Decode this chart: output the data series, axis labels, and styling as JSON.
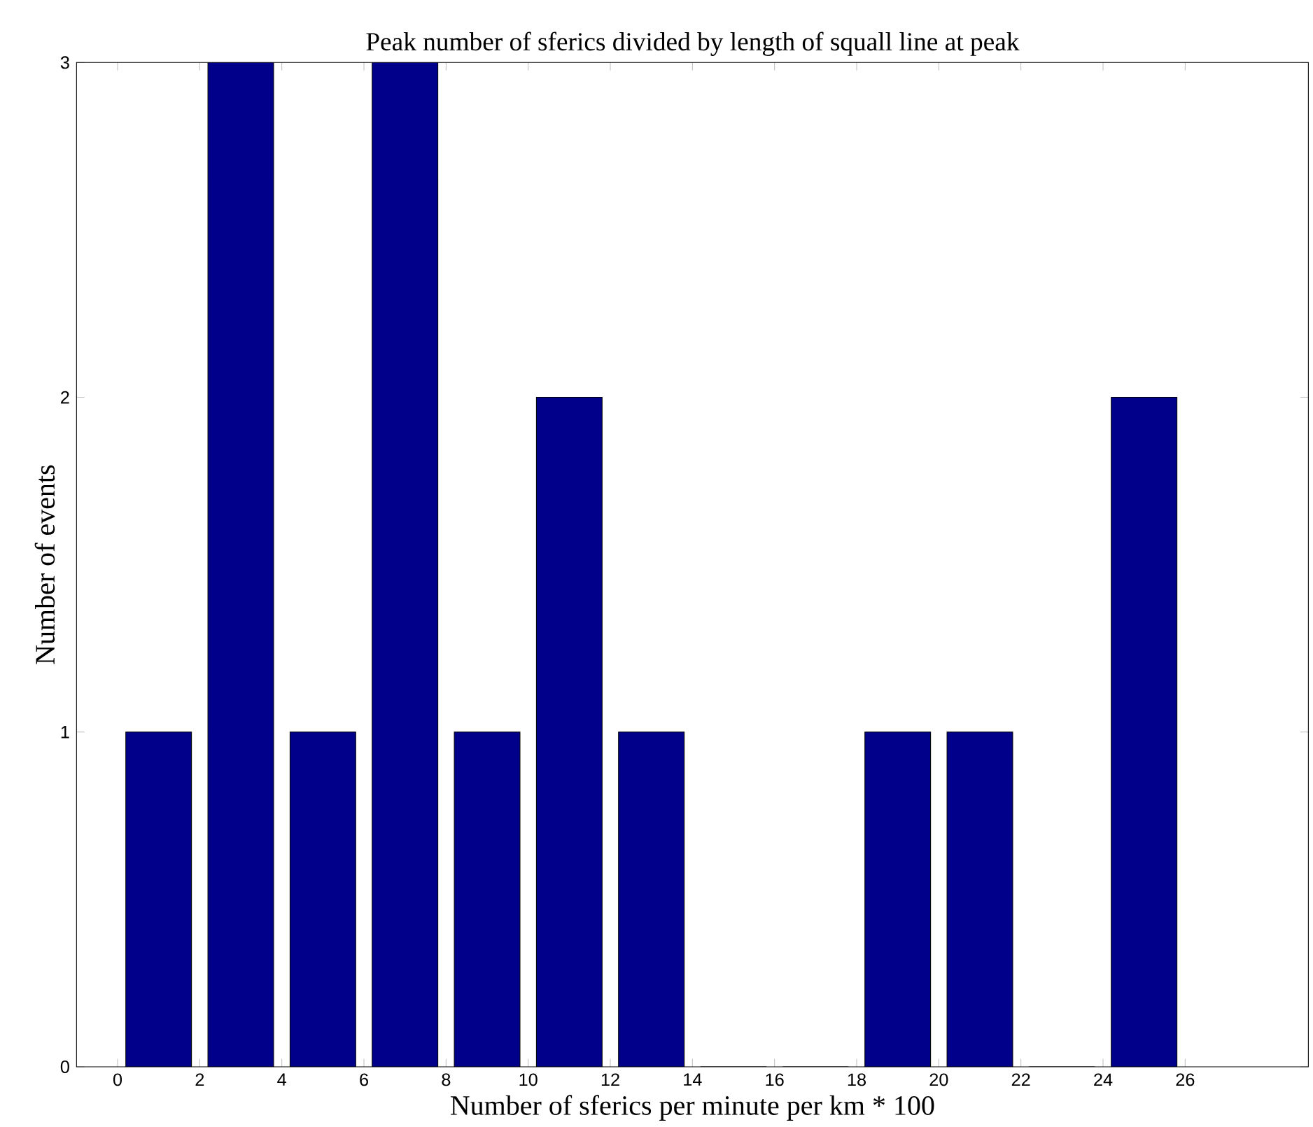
{
  "chart_data": {
    "type": "histogram",
    "title": "Peak number of sferics divided by length of squall line at peak",
    "xlabel": "Number of sferics per minute per km * 100",
    "ylabel": "Number of events",
    "bins": [
      0,
      2,
      4,
      6,
      8,
      10,
      12,
      14,
      16,
      18,
      20,
      22,
      24,
      26
    ],
    "values": [
      1,
      3,
      1,
      3,
      1,
      2,
      1,
      0,
      0,
      1,
      1,
      0,
      2
    ],
    "color": "#00008b",
    "xlim": [
      -1,
      29
    ],
    "xticks": [
      0,
      2,
      4,
      6,
      8,
      10,
      12,
      14,
      16,
      18,
      20,
      22,
      24,
      26
    ],
    "ylim": [
      0,
      3
    ],
    "yticks": [
      0,
      1,
      2,
      3
    ],
    "grid": false
  }
}
